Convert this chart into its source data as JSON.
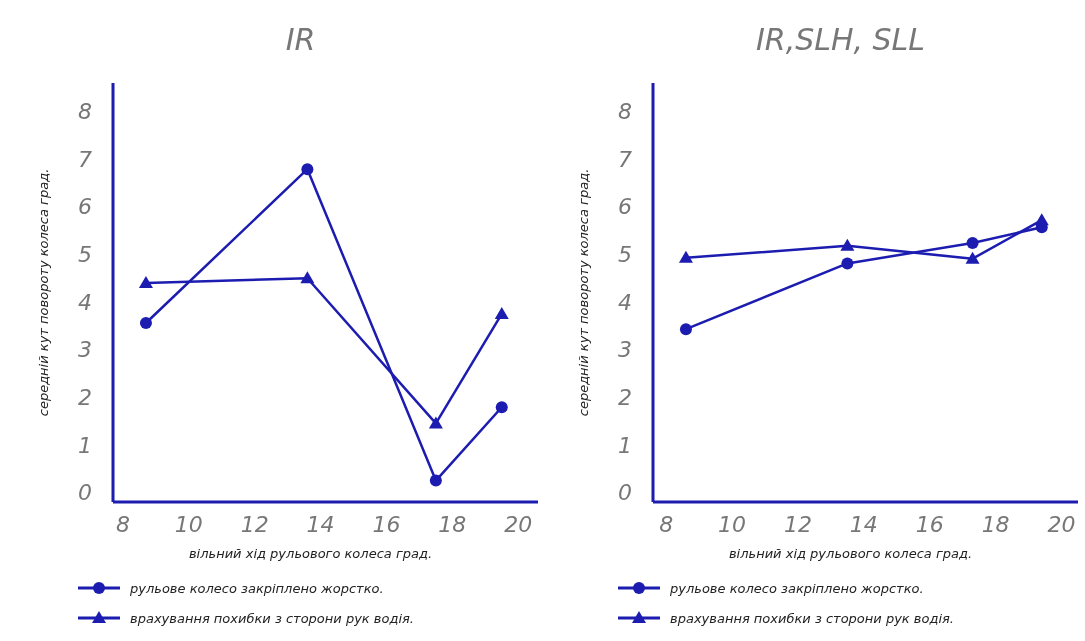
{
  "chart_data": [
    {
      "type": "line",
      "title": "IR",
      "xlabel": "вільний хід рульового колеса град.",
      "ylabel": "середній кут повороту колеса град.",
      "xlim": [
        7.7,
        20.6
      ],
      "xticks": [
        8,
        10,
        12,
        14,
        16,
        18,
        20
      ],
      "ylim": [
        -0.2,
        8.6
      ],
      "yticks": [
        0,
        1,
        2,
        3,
        4,
        5,
        6,
        7,
        8
      ],
      "grid": false,
      "legend": "bottom",
      "series": [
        {
          "name": "рульове колесо закріплено жорстко.",
          "color": "#1c1cb0",
          "marker": "circle",
          "x": [
            8.7,
            13.6,
            17.5,
            19.5
          ],
          "values": [
            3.56,
            6.79,
            0.25,
            1.79
          ]
        },
        {
          "name": "врахування похибки з сторони рук водія.",
          "color": "#1c1cb0",
          "marker": "triangle",
          "x": [
            8.7,
            13.6,
            17.5,
            19.5
          ],
          "values": [
            4.4,
            4.5,
            1.45,
            3.75
          ]
        }
      ]
    },
    {
      "type": "line",
      "title": "IR,SLH, SLL",
      "xlabel": "вільний хід рульового колеса град.",
      "ylabel": "середній кут повороту колеса град.",
      "xlim": [
        7.6,
        20.5
      ],
      "xticks": [
        8,
        10,
        12,
        14,
        16,
        18,
        20
      ],
      "ylim": [
        -0.2,
        8.6
      ],
      "yticks": [
        0,
        1,
        2,
        3,
        4,
        5,
        6,
        7,
        8
      ],
      "grid": false,
      "legend": "bottom",
      "series": [
        {
          "name": "рульове колесо закріплено жорстко.",
          "color": "#1c1cb0",
          "marker": "circle",
          "x": [
            8.6,
            13.5,
            17.3,
            19.4
          ],
          "values": [
            3.43,
            4.81,
            5.24,
            5.57
          ]
        },
        {
          "name": "врахування похибки з сторони рук водія.",
          "color": "#1c1cb0",
          "marker": "triangle",
          "x": [
            8.6,
            13.5,
            17.3,
            19.4
          ],
          "values": [
            4.93,
            5.18,
            4.91,
            5.72
          ]
        }
      ]
    }
  ]
}
